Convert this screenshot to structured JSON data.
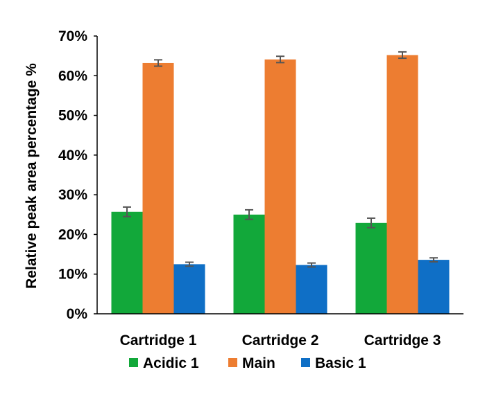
{
  "chart_data": {
    "type": "bar",
    "categories": [
      "Cartridge 1",
      "Cartridge 2",
      "Cartridge 3"
    ],
    "series": [
      {
        "name": "Acidic 1",
        "color": "#12a83a",
        "values": [
          25.7,
          25.0,
          22.9
        ],
        "errors": [
          1.2,
          1.2,
          1.2
        ]
      },
      {
        "name": "Main",
        "color": "#ed7d31",
        "values": [
          63.2,
          64.1,
          65.2
        ],
        "errors": [
          0.8,
          0.8,
          0.8
        ]
      },
      {
        "name": "Basic 1",
        "color": "#0f6fc6",
        "values": [
          12.5,
          12.3,
          13.6
        ],
        "errors": [
          0.5,
          0.5,
          0.5
        ]
      }
    ],
    "ylabel": "Relative peak area percentage %",
    "xlabel": "",
    "title": "",
    "ylim": [
      0,
      70
    ],
    "yticks": [
      0,
      10,
      20,
      30,
      40,
      50,
      60,
      70
    ],
    "ytick_labels": [
      "0%",
      "10%",
      "20%",
      "30%",
      "40%",
      "50%",
      "60%",
      "70%"
    ],
    "grid": false,
    "legend_position": "bottom"
  }
}
